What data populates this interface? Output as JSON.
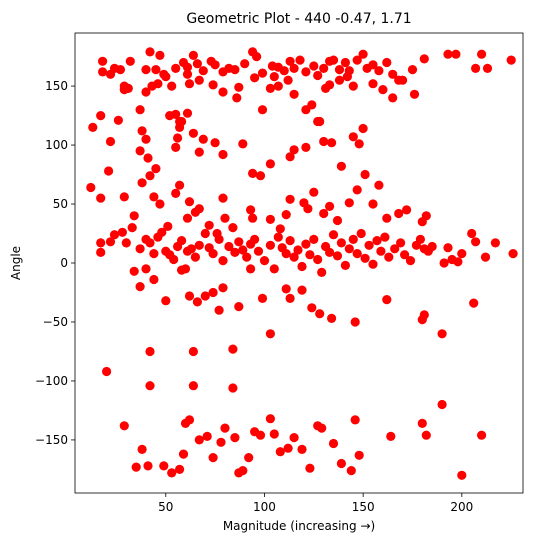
{
  "chart_data": {
    "type": "scatter",
    "title": "Geometric Plot - 440 -0.47, 1.71",
    "xlabel": "Magnitude (increasing →)",
    "ylabel": "Angle",
    "xlim": [
      4,
      231
    ],
    "ylim": [
      -195,
      195
    ],
    "xticks": [
      50,
      100,
      150,
      200
    ],
    "yticks": [
      -150,
      -100,
      -50,
      0,
      50,
      100,
      150
    ],
    "grid": false,
    "legend": "none",
    "marker_color": "#ff0000",
    "series": [
      {
        "points": [
          [
            18,
            171
          ],
          [
            18,
            162
          ],
          [
            22,
            160
          ],
          [
            24,
            165
          ],
          [
            27,
            164
          ],
          [
            29,
            150
          ],
          [
            32,
            171
          ],
          [
            40,
            164
          ],
          [
            42,
            179
          ],
          [
            45,
            164
          ],
          [
            47,
            176
          ],
          [
            49,
            160
          ],
          [
            55,
            165
          ],
          [
            59,
            170
          ],
          [
            61,
            166
          ],
          [
            64,
            176
          ],
          [
            66,
            169
          ],
          [
            69,
            163
          ],
          [
            73,
            171
          ],
          [
            75,
            168
          ],
          [
            79,
            162
          ],
          [
            82,
            165
          ],
          [
            85,
            164
          ],
          [
            90,
            169
          ],
          [
            94,
            179
          ],
          [
            96,
            175
          ],
          [
            99,
            161
          ],
          [
            104,
            167
          ],
          [
            107,
            166
          ],
          [
            110,
            163
          ],
          [
            113,
            171
          ],
          [
            115,
            165
          ],
          [
            118,
            172
          ],
          [
            121,
            162
          ],
          [
            125,
            167
          ],
          [
            127,
            159
          ],
          [
            130,
            165
          ],
          [
            133,
            171
          ],
          [
            135,
            172
          ],
          [
            138,
            164
          ],
          [
            141,
            170
          ],
          [
            143,
            163
          ],
          [
            147,
            172
          ],
          [
            150,
            177
          ],
          [
            152,
            165
          ],
          [
            155,
            168
          ],
          [
            158,
            163
          ],
          [
            162,
            170
          ],
          [
            165,
            160
          ],
          [
            170,
            155
          ],
          [
            175,
            164
          ],
          [
            181,
            173
          ],
          [
            193,
            177
          ],
          [
            197,
            177
          ],
          [
            207,
            165
          ],
          [
            210,
            177
          ],
          [
            213,
            165
          ],
          [
            225,
            172
          ],
          [
            13,
            115
          ],
          [
            17,
            125
          ],
          [
            22,
            103
          ],
          [
            26,
            121
          ],
          [
            29,
            147
          ],
          [
            31,
            148
          ],
          [
            37,
            130
          ],
          [
            40,
            145
          ],
          [
            43,
            150
          ],
          [
            46,
            152
          ],
          [
            50,
            158
          ],
          [
            53,
            150
          ],
          [
            55,
            126
          ],
          [
            57,
            120
          ],
          [
            61,
            160
          ],
          [
            62,
            152
          ],
          [
            67,
            155
          ],
          [
            74,
            151
          ],
          [
            79,
            145
          ],
          [
            86,
            140
          ],
          [
            87,
            149
          ],
          [
            95,
            157
          ],
          [
            99,
            130
          ],
          [
            103,
            148
          ],
          [
            105,
            158
          ],
          [
            107,
            150
          ],
          [
            112,
            155
          ],
          [
            115,
            143
          ],
          [
            121,
            130
          ],
          [
            124,
            134
          ],
          [
            128,
            120
          ],
          [
            131,
            148
          ],
          [
            133,
            151
          ],
          [
            138,
            155
          ],
          [
            142,
            158
          ],
          [
            145,
            150
          ],
          [
            155,
            152
          ],
          [
            160,
            147
          ],
          [
            165,
            140
          ],
          [
            168,
            155
          ],
          [
            176,
            143
          ],
          [
            37,
            95
          ],
          [
            38,
            112
          ],
          [
            40,
            105
          ],
          [
            41,
            89
          ],
          [
            45,
            80
          ],
          [
            52,
            125
          ],
          [
            55,
            98
          ],
          [
            56,
            106
          ],
          [
            57,
            115
          ],
          [
            58,
            120
          ],
          [
            61,
            127
          ],
          [
            64,
            110
          ],
          [
            67,
            94
          ],
          [
            69,
            105
          ],
          [
            75,
            102
          ],
          [
            79,
            92
          ],
          [
            89,
            101
          ],
          [
            94,
            76
          ],
          [
            98,
            74
          ],
          [
            103,
            84
          ],
          [
            113,
            90
          ],
          [
            115,
            96
          ],
          [
            121,
            98
          ],
          [
            127,
            120
          ],
          [
            130,
            103
          ],
          [
            134,
            102
          ],
          [
            139,
            82
          ],
          [
            145,
            107
          ],
          [
            148,
            101
          ],
          [
            150,
            114
          ],
          [
            12,
            64
          ],
          [
            17,
            55
          ],
          [
            21,
            78
          ],
          [
            29,
            56
          ],
          [
            34,
            40
          ],
          [
            38,
            68
          ],
          [
            42,
            74
          ],
          [
            44,
            56
          ],
          [
            47,
            50
          ],
          [
            51,
            31
          ],
          [
            55,
            59
          ],
          [
            57,
            66
          ],
          [
            61,
            38
          ],
          [
            62,
            52
          ],
          [
            65,
            43
          ],
          [
            67,
            46
          ],
          [
            72,
            32
          ],
          [
            76,
            25
          ],
          [
            79,
            55
          ],
          [
            80,
            38
          ],
          [
            84,
            30
          ],
          [
            93,
            45
          ],
          [
            94,
            38
          ],
          [
            103,
            37
          ],
          [
            108,
            29
          ],
          [
            111,
            41
          ],
          [
            113,
            54
          ],
          [
            120,
            51
          ],
          [
            122,
            46
          ],
          [
            125,
            60
          ],
          [
            130,
            42
          ],
          [
            133,
            48
          ],
          [
            137,
            36
          ],
          [
            143,
            51
          ],
          [
            147,
            62
          ],
          [
            151,
            75
          ],
          [
            155,
            50
          ],
          [
            158,
            66
          ],
          [
            162,
            38
          ],
          [
            168,
            42
          ],
          [
            172,
            45
          ],
          [
            180,
            35
          ],
          [
            182,
            40
          ],
          [
            17,
            17
          ],
          [
            17,
            9
          ],
          [
            22,
            18
          ],
          [
            24,
            24
          ],
          [
            28,
            26
          ],
          [
            30,
            17
          ],
          [
            33,
            30
          ],
          [
            37,
            12
          ],
          [
            40,
            20
          ],
          [
            42,
            17
          ],
          [
            44,
            8
          ],
          [
            46,
            22
          ],
          [
            48,
            26
          ],
          [
            50,
            10
          ],
          [
            52,
            7
          ],
          [
            54,
            3
          ],
          [
            56,
            14
          ],
          [
            58,
            19
          ],
          [
            60,
            -5
          ],
          [
            61,
            10
          ],
          [
            63,
            12
          ],
          [
            65,
            5
          ],
          [
            67,
            15
          ],
          [
            70,
            25
          ],
          [
            72,
            13
          ],
          [
            74,
            8
          ],
          [
            77,
            20
          ],
          [
            79,
            2
          ],
          [
            82,
            14
          ],
          [
            85,
            9
          ],
          [
            87,
            18
          ],
          [
            89,
            11
          ],
          [
            91,
            5
          ],
          [
            93,
            16
          ],
          [
            95,
            20
          ],
          [
            97,
            10
          ],
          [
            100,
            2
          ],
          [
            103,
            15
          ],
          [
            105,
            -5
          ],
          [
            107,
            22
          ],
          [
            109,
            13
          ],
          [
            111,
            8
          ],
          [
            113,
            19
          ],
          [
            115,
            5
          ],
          [
            117,
            11
          ],
          [
            119,
            -3
          ],
          [
            121,
            16
          ],
          [
            123,
            7
          ],
          [
            125,
            20
          ],
          [
            127,
            3
          ],
          [
            129,
            -8
          ],
          [
            131,
            14
          ],
          [
            133,
            9
          ],
          [
            135,
            24
          ],
          [
            137,
            6
          ],
          [
            139,
            17
          ],
          [
            141,
            -2
          ],
          [
            143,
            12
          ],
          [
            145,
            20
          ],
          [
            147,
            8
          ],
          [
            149,
            25
          ],
          [
            151,
            4
          ],
          [
            153,
            15
          ],
          [
            155,
            -1
          ],
          [
            157,
            19
          ],
          [
            159,
            10
          ],
          [
            161,
            22
          ],
          [
            163,
            5
          ],
          [
            166,
            12
          ],
          [
            169,
            17
          ],
          [
            171,
            7
          ],
          [
            174,
            2
          ],
          [
            177,
            15
          ],
          [
            179,
            20
          ],
          [
            181,
            12
          ],
          [
            183,
            10
          ],
          [
            185,
            14
          ],
          [
            191,
            0
          ],
          [
            193,
            13
          ],
          [
            195,
            3
          ],
          [
            198,
            1
          ],
          [
            200,
            8
          ],
          [
            205,
            25
          ],
          [
            207,
            18
          ],
          [
            212,
            5
          ],
          [
            217,
            17
          ],
          [
            226,
            8
          ],
          [
            34,
            -7
          ],
          [
            37,
            -20
          ],
          [
            40,
            -5
          ],
          [
            44,
            -14
          ],
          [
            50,
            -32
          ],
          [
            58,
            -6
          ],
          [
            62,
            -28
          ],
          [
            66,
            -33
          ],
          [
            70,
            -28
          ],
          [
            74,
            -25
          ],
          [
            77,
            -40
          ],
          [
            79,
            -21
          ],
          [
            87,
            -37
          ],
          [
            93,
            -5
          ],
          [
            99,
            -30
          ],
          [
            103,
            -60
          ],
          [
            111,
            -22
          ],
          [
            113,
            -30
          ],
          [
            119,
            -23
          ],
          [
            124,
            -38
          ],
          [
            128,
            -43
          ],
          [
            134,
            -47
          ],
          [
            146,
            -50
          ],
          [
            162,
            -31
          ],
          [
            180,
            -48
          ],
          [
            181,
            -44
          ],
          [
            190,
            -60
          ],
          [
            206,
            -34
          ],
          [
            20,
            -92
          ],
          [
            42,
            -75
          ],
          [
            42,
            -104
          ],
          [
            64,
            -104
          ],
          [
            64,
            -75
          ],
          [
            84,
            -73
          ],
          [
            84,
            -106
          ],
          [
            29,
            -138
          ],
          [
            35,
            -173
          ],
          [
            38,
            -158
          ],
          [
            41,
            -172
          ],
          [
            49,
            -172
          ],
          [
            53,
            -178
          ],
          [
            57,
            -175
          ],
          [
            59,
            -162
          ],
          [
            60,
            -136
          ],
          [
            62,
            -133
          ],
          [
            67,
            -150
          ],
          [
            71,
            -147
          ],
          [
            74,
            -165
          ],
          [
            78,
            -152
          ],
          [
            80,
            -140
          ],
          [
            85,
            -148
          ],
          [
            87,
            -178
          ],
          [
            89,
            -176
          ],
          [
            92,
            -165
          ],
          [
            95,
            -143
          ],
          [
            98,
            -146
          ],
          [
            103,
            -132
          ],
          [
            105,
            -145
          ],
          [
            108,
            -160
          ],
          [
            112,
            -157
          ],
          [
            115,
            -148
          ],
          [
            119,
            -158
          ],
          [
            123,
            -174
          ],
          [
            127,
            -138
          ],
          [
            129,
            -140
          ],
          [
            135,
            -153
          ],
          [
            139,
            -170
          ],
          [
            144,
            -176
          ],
          [
            146,
            -133
          ],
          [
            148,
            -163
          ],
          [
            164,
            -147
          ],
          [
            180,
            -136
          ],
          [
            182,
            -146
          ],
          [
            190,
            -120
          ],
          [
            200,
            -180
          ],
          [
            210,
            -146
          ]
        ]
      }
    ]
  }
}
